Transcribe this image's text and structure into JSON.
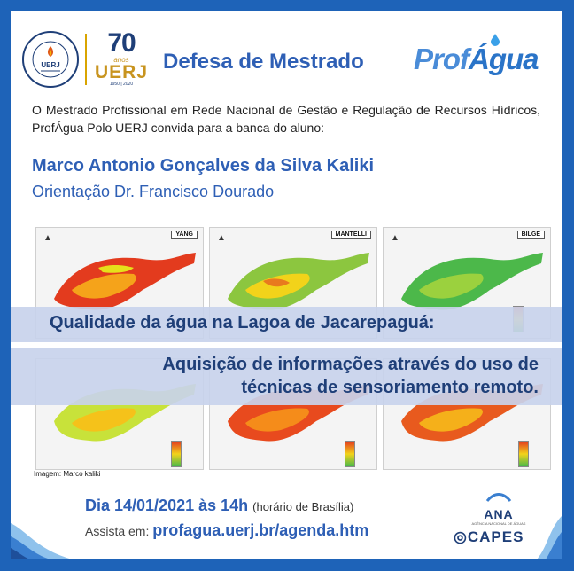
{
  "header": {
    "uerj_logo_text": "UERJ",
    "uerj_seal_text": "UNIVERSIDADE DO ESTADO DO RIO DE JANEIRO",
    "anniversary": {
      "number": "70",
      "anos": "anos",
      "name": "UERJ",
      "years": "1950 | 2020"
    },
    "title": "Defesa de Mestrado",
    "brand": {
      "prof": "Prof",
      "agua": "Água"
    }
  },
  "intro": "O Mestrado Profissional em Rede Nacional de Gestão e Regulação de Recursos Hídricos, ProfÁgua Polo UERJ convida para a banca do aluno:",
  "student": "Marco Antonio Gonçalves da Silva Kaliki",
  "advisor": "Orientação Dr. Francisco Dourado",
  "maps": {
    "top_labels": [
      "YANG",
      "MANTELLI",
      "BILGE"
    ],
    "credit": "Imagem: Marco kaliki"
  },
  "thesis": {
    "line1": "Qualidade da água na Lagoa de Jacarepaguá:",
    "line2a": "Aquisição de informações através do uso de",
    "line2b": "técnicas de sensoriamento remoto."
  },
  "event": {
    "date": "Dia 14/01/2021 às 14h",
    "timezone": "(horário de Brasília)",
    "watch_prefix": "Assista em:",
    "url": "profagua.uerj.br/agenda.htm"
  },
  "sponsors": {
    "ana": "ANA",
    "ana_sub": "AGÊNCIA NACIONAL DE ÁGUAS",
    "capes": "CAPES"
  },
  "colors": {
    "frame": "#1e63b8",
    "accent": "#2e5fb5",
    "dark": "#1f3f78",
    "gold": "#c8941f"
  }
}
